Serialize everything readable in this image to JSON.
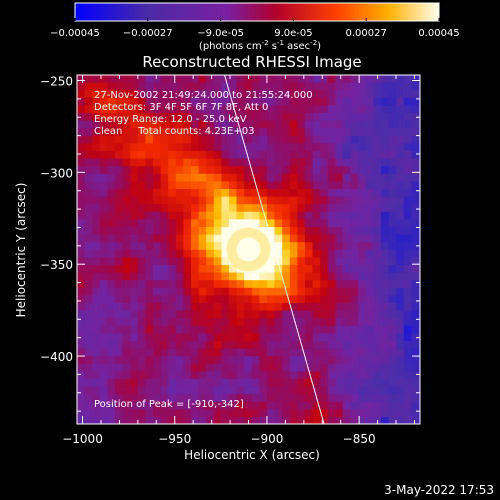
{
  "colorbar": {
    "ticks": [
      "-0.00045",
      "-0.00027",
      "-9.0e-05",
      "9.0e-05",
      "0.00027",
      "0.00045"
    ],
    "units_main": "(photons cm",
    "units_exp1": "-2",
    "units_s": " s",
    "units_exp2": "-1",
    "units_asec": " asec",
    "units_exp3": "-2",
    "units_close": ")",
    "range": [
      -0.00045,
      0.00045
    ],
    "colors": [
      "#0000ff",
      "#5a2c9c",
      "#7a1fa0",
      "#b2002a",
      "#ff4a00",
      "#ffcc00",
      "#ffffee"
    ]
  },
  "chart_data": {
    "type": "heatmap",
    "title": "Reconstructed RHESSI Image",
    "xlabel": "Heliocentric X (arcsec)",
    "ylabel": "Heliocentric Y (arcsec)",
    "xlim": [
      -1003,
      -817
    ],
    "ylim": [
      -437,
      -247
    ],
    "xticks": [
      -1000,
      -950,
      -900,
      -850
    ],
    "xtick_labels": [
      "−1000",
      "−950",
      "−900",
      "−850"
    ],
    "yticks": [
      -250,
      -300,
      -350,
      -400
    ],
    "ytick_labels": [
      "−250",
      "−300",
      "−350",
      "−400"
    ],
    "peak": {
      "x": -910,
      "y": -342
    },
    "limb_line": [
      [
        -923,
        -247
      ],
      [
        -869,
        -437
      ]
    ],
    "value_range": [
      -0.00045,
      0.00045
    ]
  },
  "annotations": {
    "line1": "27-Nov-2002 21:49:24.000 to 21:55:24.000",
    "line2": "Detectors: 3F 4F 5F 6F 7F 8F, Att 0",
    "line3": "Energy Range: 12.0 - 25.0 keV",
    "line4": "Clean     Total counts: 4.23E+03",
    "peak_label": "Position of Peak = [-910,-342]"
  },
  "footer_date": "3-May-2022 17:53"
}
